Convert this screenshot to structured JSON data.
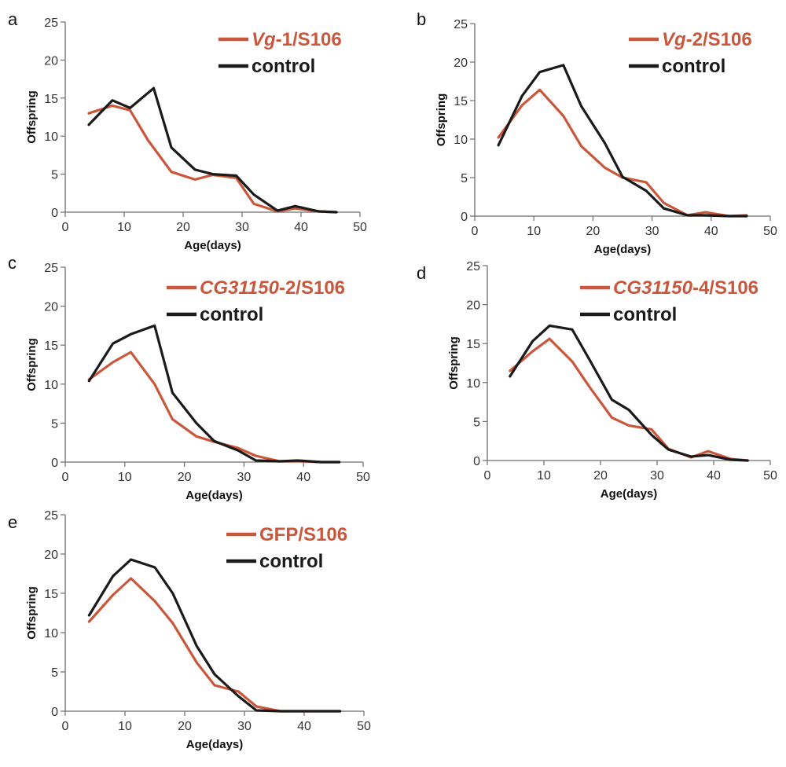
{
  "colors": {
    "treated": "#c8573c",
    "control": "#1a1a1a",
    "axis": "#6e6e6e"
  },
  "chart_data": [
    {
      "type": "line",
      "panel": "a",
      "xlabel": "Age(days)",
      "ylabel": "Offspring",
      "xlim": [
        0,
        50
      ],
      "ylim": [
        0,
        25
      ],
      "xticks": [
        0,
        10,
        20,
        30,
        40,
        50
      ],
      "yticks": [
        0,
        5,
        10,
        15,
        20,
        25
      ],
      "legend_position": "top-right",
      "series": [
        {
          "name": "Vg-1/S106",
          "name_italic": "Vg",
          "name_plain": "-1/S106",
          "role": "treated",
          "x": [
            4,
            8,
            11,
            14,
            18,
            22,
            25,
            29,
            32,
            36,
            39,
            43,
            46
          ],
          "y": [
            13,
            14,
            13.4,
            9.5,
            5.3,
            4.3,
            4.9,
            4.5,
            1.1,
            0.1,
            0.5,
            0.1,
            0
          ]
        },
        {
          "name": "control",
          "name_italic": "",
          "name_plain": "control",
          "role": "control",
          "x": [
            4,
            8,
            11,
            15,
            18,
            22,
            25,
            29,
            32,
            36,
            39,
            43,
            46
          ],
          "y": [
            11.5,
            14.7,
            13.7,
            16.3,
            8.5,
            5.6,
            5.0,
            4.8,
            2.3,
            0.2,
            0.8,
            0.1,
            0
          ]
        }
      ]
    },
    {
      "type": "line",
      "panel": "b",
      "xlabel": "Age(days)",
      "ylabel": "Offspring",
      "xlim": [
        0,
        50
      ],
      "ylim": [
        0,
        25
      ],
      "xticks": [
        0,
        10,
        20,
        30,
        40,
        50
      ],
      "yticks": [
        0,
        5,
        10,
        15,
        20,
        25
      ],
      "legend_position": "top-right",
      "series": [
        {
          "name": "Vg-2/S106",
          "name_italic": "Vg",
          "name_plain": "-2/S106",
          "role": "treated",
          "x": [
            4,
            8,
            11,
            15,
            18,
            22,
            25,
            29,
            32,
            36,
            39,
            43,
            46
          ],
          "y": [
            10.2,
            14.4,
            16.4,
            13.0,
            9.1,
            6.3,
            5.0,
            4.4,
            1.7,
            0.1,
            0.5,
            0,
            0.1
          ]
        },
        {
          "name": "control",
          "name_italic": "",
          "name_plain": "control",
          "role": "control",
          "x": [
            4,
            8,
            11,
            15,
            18,
            22,
            25,
            29,
            32,
            36,
            39,
            43,
            46
          ],
          "y": [
            9.2,
            15.6,
            18.7,
            19.6,
            14.3,
            9.5,
            5.1,
            3.3,
            1.0,
            0.1,
            0.1,
            0,
            0
          ]
        }
      ]
    },
    {
      "type": "line",
      "panel": "c",
      "xlabel": "Age(days)",
      "ylabel": "Offspring",
      "xlim": [
        0,
        50
      ],
      "ylim": [
        0,
        25
      ],
      "xticks": [
        0,
        10,
        20,
        30,
        40,
        50
      ],
      "yticks": [
        0,
        5,
        10,
        15,
        20,
        25
      ],
      "legend_position": "top-right",
      "series": [
        {
          "name": "CG31150-2/S106",
          "name_italic": "CG31150",
          "name_plain": "-2/S106",
          "role": "treated",
          "x": [
            4,
            8,
            11,
            15,
            18,
            22,
            25,
            29,
            32,
            36,
            39,
            43,
            46
          ],
          "y": [
            10.6,
            12.8,
            14.1,
            10.0,
            5.5,
            3.3,
            2.6,
            1.8,
            0.8,
            0.1,
            0.1,
            0,
            0
          ]
        },
        {
          "name": "control",
          "name_italic": "",
          "name_plain": "control",
          "role": "control",
          "x": [
            4,
            8,
            11,
            15,
            18,
            22,
            25,
            29,
            32,
            36,
            39,
            43,
            46
          ],
          "y": [
            10.4,
            15.2,
            16.4,
            17.5,
            8.9,
            5.0,
            2.7,
            1.5,
            0.2,
            0.1,
            0.2,
            0,
            0
          ]
        }
      ]
    },
    {
      "type": "line",
      "panel": "d",
      "xlabel": "Age(days)",
      "ylabel": "Offspring",
      "xlim": [
        0,
        50
      ],
      "ylim": [
        0,
        25
      ],
      "xticks": [
        0,
        10,
        20,
        30,
        40,
        50
      ],
      "yticks": [
        0,
        5,
        10,
        15,
        20,
        25
      ],
      "legend_position": "top-right",
      "series": [
        {
          "name": "CG31150-4/S106",
          "name_italic": "CG31150",
          "name_plain": "-4/S106",
          "role": "treated",
          "x": [
            4,
            8,
            11,
            15,
            18,
            22,
            25,
            29,
            32,
            36,
            39,
            43,
            46
          ],
          "y": [
            11.5,
            14.0,
            15.6,
            12.7,
            9.5,
            5.5,
            4.5,
            4.0,
            1.5,
            0.4,
            1.2,
            0.2,
            0
          ]
        },
        {
          "name": "control",
          "name_italic": "",
          "name_plain": "control",
          "role": "control",
          "x": [
            4,
            8,
            11,
            15,
            18,
            22,
            25,
            29,
            32,
            36,
            39,
            43,
            46
          ],
          "y": [
            10.8,
            15.3,
            17.3,
            16.8,
            13.0,
            7.8,
            6.5,
            3.3,
            1.4,
            0.5,
            0.7,
            0.1,
            0
          ]
        }
      ]
    },
    {
      "type": "line",
      "panel": "e",
      "xlabel": "Age(days)",
      "ylabel": "Offspring",
      "xlim": [
        0,
        50
      ],
      "ylim": [
        0,
        25
      ],
      "xticks": [
        0,
        10,
        20,
        30,
        40,
        50
      ],
      "yticks": [
        0,
        5,
        10,
        15,
        20,
        25
      ],
      "legend_position": "top-right",
      "series": [
        {
          "name": "GFP/S106",
          "name_italic": "",
          "name_plain": "GFP/S106",
          "role": "treated",
          "x": [
            4,
            8,
            11,
            15,
            18,
            22,
            25,
            29,
            32,
            36,
            39,
            43,
            46
          ],
          "y": [
            11.4,
            14.8,
            16.9,
            14.0,
            11.2,
            6.2,
            3.3,
            2.5,
            0.6,
            0.0,
            0,
            0,
            0
          ]
        },
        {
          "name": "control",
          "name_italic": "",
          "name_plain": "control",
          "role": "control",
          "x": [
            4,
            8,
            11,
            15,
            18,
            22,
            25,
            29,
            32,
            36,
            39,
            43,
            46
          ],
          "y": [
            12.2,
            17.2,
            19.3,
            18.3,
            15.0,
            8.3,
            4.7,
            1.9,
            0.1,
            0,
            0,
            0,
            0
          ]
        }
      ]
    }
  ]
}
